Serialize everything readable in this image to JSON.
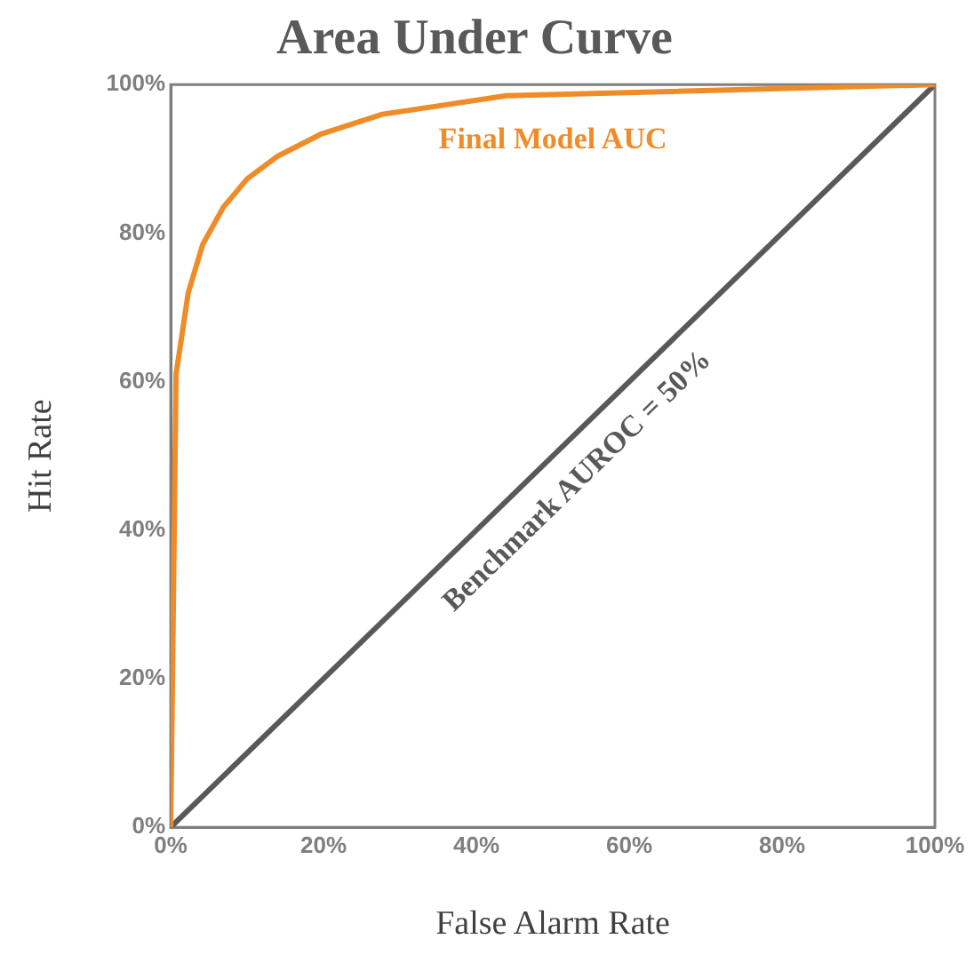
{
  "chart_data": {
    "type": "line",
    "title": "Area Under Curve",
    "xlabel": "False Alarm Rate",
    "ylabel": "Hit Rate",
    "xlim": [
      0,
      100
    ],
    "ylim": [
      0,
      100
    ],
    "xticks": [
      {
        "value": 0,
        "label": "0%"
      },
      {
        "value": 20,
        "label": "20%"
      },
      {
        "value": 40,
        "label": "40%"
      },
      {
        "value": 60,
        "label": "60%"
      },
      {
        "value": 80,
        "label": "80%"
      },
      {
        "value": 100,
        "label": "100%"
      }
    ],
    "yticks": [
      {
        "value": 0,
        "label": "0%"
      },
      {
        "value": 20,
        "label": "20%"
      },
      {
        "value": 40,
        "label": "40%"
      },
      {
        "value": 60,
        "label": "60%"
      },
      {
        "value": 80,
        "label": "80%"
      },
      {
        "value": 100,
        "label": "100%"
      }
    ],
    "grid": false,
    "legend": false,
    "marker": "none",
    "line_style": "solid",
    "series": [
      {
        "name": "Final Model AUC",
        "color": "#f08c28",
        "x": [
          0,
          0.7,
          2.3,
          4.2,
          6.9,
          10,
          13.9,
          19.6,
          27.7,
          43.9,
          100
        ],
        "values": [
          0,
          61,
          72,
          78.5,
          83.5,
          87.3,
          90.3,
          93.3,
          96,
          98.5,
          100
        ]
      },
      {
        "name": "Benchmark AUROC = 50%",
        "color": "#595959",
        "x": [
          0,
          100
        ],
        "values": [
          0,
          100
        ]
      }
    ]
  }
}
